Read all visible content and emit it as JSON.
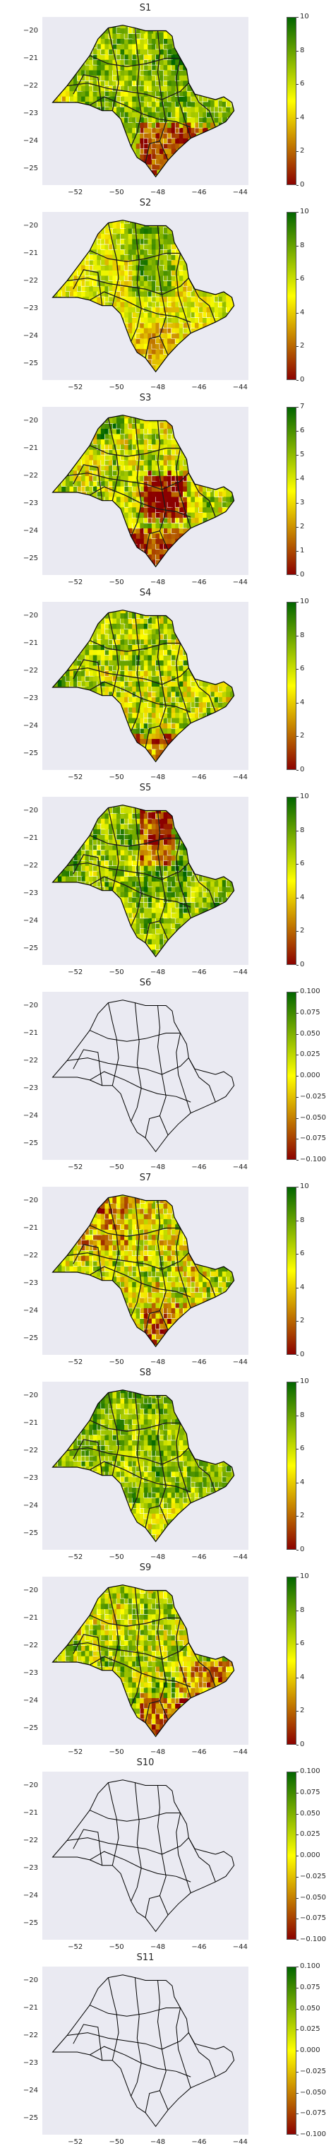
{
  "figure": {
    "panels": [
      {
        "title": "S1",
        "colorbar_ticks": [
          "10",
          "8",
          "6",
          "4",
          "2",
          "0"
        ],
        "fill_mode": "S1"
      },
      {
        "title": "S2",
        "colorbar_ticks": [
          "10",
          "8",
          "6",
          "4",
          "2",
          "0"
        ],
        "fill_mode": "S2"
      },
      {
        "title": "S3",
        "colorbar_ticks": [
          "7",
          "6",
          "5",
          "4",
          "3",
          "2",
          "1",
          "0"
        ],
        "fill_mode": "S3"
      },
      {
        "title": "S4",
        "colorbar_ticks": [
          "10",
          "8",
          "6",
          "4",
          "2",
          "0"
        ],
        "fill_mode": "S4"
      },
      {
        "title": "S5",
        "colorbar_ticks": [
          "10",
          "8",
          "6",
          "4",
          "2",
          "0"
        ],
        "fill_mode": "S5"
      },
      {
        "title": "S6",
        "colorbar_ticks": [
          "0.100",
          "0.075",
          "0.050",
          "0.025",
          "0.000",
          "−0.025",
          "−0.050",
          "−0.075",
          "−0.100"
        ],
        "fill_mode": "none"
      },
      {
        "title": "S7",
        "colorbar_ticks": [
          "10",
          "8",
          "6",
          "4",
          "2",
          "0"
        ],
        "fill_mode": "S7"
      },
      {
        "title": "S8",
        "colorbar_ticks": [
          "10",
          "8",
          "6",
          "4",
          "2",
          "0"
        ],
        "fill_mode": "S8"
      },
      {
        "title": "S9",
        "colorbar_ticks": [
          "10",
          "8",
          "6",
          "4",
          "2",
          "0"
        ],
        "fill_mode": "S9"
      },
      {
        "title": "S10",
        "colorbar_ticks": [
          "0.100",
          "0.075",
          "0.050",
          "0.025",
          "0.000",
          "−0.025",
          "−0.050",
          "−0.075",
          "−0.100"
        ],
        "fill_mode": "none"
      },
      {
        "title": "S11",
        "colorbar_ticks": [
          "0.100",
          "0.075",
          "0.050",
          "0.025",
          "0.000",
          "−0.025",
          "−0.050",
          "−0.075",
          "−0.100"
        ],
        "fill_mode": "none"
      }
    ],
    "y_ticks": [
      "−20",
      "−21",
      "−22",
      "−23",
      "−24",
      "−25"
    ],
    "x_ticks": [
      "−52",
      "−50",
      "−48",
      "−46",
      "−44"
    ],
    "colormap": {
      "low": "#8b0000",
      "mid": "#ffff00",
      "high": "#006400"
    }
  }
}
